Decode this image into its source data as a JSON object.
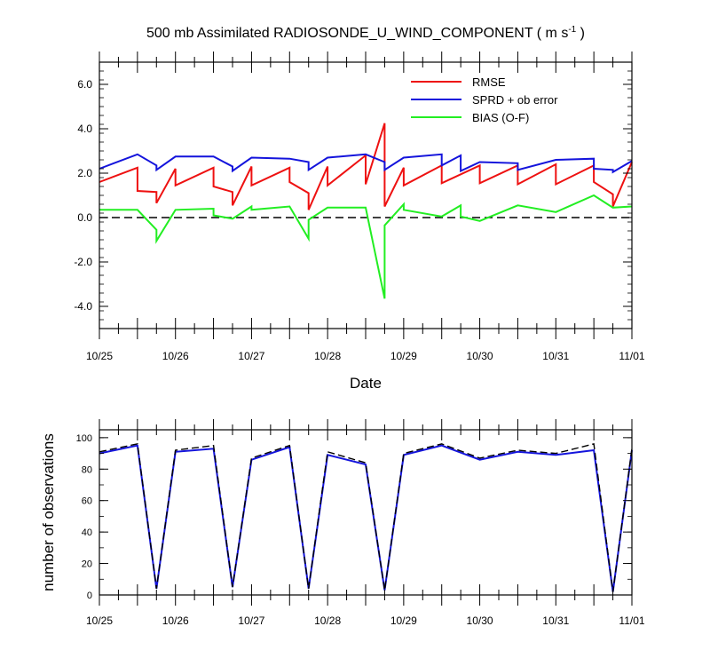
{
  "chart_data": [
    {
      "type": "line",
      "title": "500 mb Assimilated RADIOSONDE_U_WIND_COMPONENT ( m s",
      "title_units_exp": "-1",
      "title_suffix": " )",
      "xlabel": "Date",
      "ylabel": "",
      "x_tick_labels": [
        "10/25",
        "10/26",
        "10/27",
        "10/28",
        "10/29",
        "10/30",
        "10/31",
        "11/01"
      ],
      "y_tick_labels": [
        "-4.0",
        "-2.0",
        "0.0",
        "2.0",
        "4.0",
        "6.0"
      ],
      "ylim": [
        -5,
        7
      ],
      "zero_line": true,
      "legend_position": "top-right",
      "series": [
        {
          "name": "RMSE",
          "color": "#ee1111",
          "x": [
            0,
            0.5,
            0.5,
            0.75,
            0.75,
            1,
            1,
            1.5,
            1.5,
            1.75,
            1.75,
            2,
            2,
            2.5,
            2.5,
            2.75,
            2.75,
            3,
            3,
            3.5,
            3.5,
            3.75,
            3.75,
            4,
            4,
            4.5,
            4.5,
            5,
            5,
            5.5,
            5.5,
            6,
            6,
            6.5,
            6.5,
            6.75,
            6.75,
            7
          ],
          "y": [
            1.6,
            2.25,
            1.2,
            1.15,
            0.65,
            2.2,
            1.45,
            2.25,
            1.4,
            1.15,
            0.55,
            2.3,
            1.45,
            2.25,
            1.6,
            1.1,
            0.35,
            2.3,
            1.45,
            2.8,
            1.5,
            4.25,
            0.5,
            2.25,
            1.45,
            2.35,
            1.55,
            2.35,
            1.55,
            2.35,
            1.5,
            2.4,
            1.5,
            2.35,
            1.6,
            1.05,
            0.5,
            2.5
          ]
        },
        {
          "name": "SPRD + ob error",
          "color": "#1414dc",
          "x": [
            0,
            0.5,
            0.75,
            0.75,
            1,
            1.5,
            1.75,
            1.75,
            2,
            2.5,
            2.75,
            2.75,
            3,
            3.5,
            3.75,
            3.75,
            4,
            4.5,
            4.5,
            4.75,
            4.75,
            5,
            5.5,
            5.5,
            6,
            6.5,
            6.5,
            6.75,
            6.75,
            7
          ],
          "y": [
            2.2,
            2.85,
            2.35,
            2.15,
            2.75,
            2.75,
            2.3,
            2.1,
            2.7,
            2.65,
            2.5,
            2.15,
            2.7,
            2.85,
            2.5,
            2.15,
            2.7,
            2.85,
            2.35,
            2.8,
            2.1,
            2.5,
            2.45,
            2.15,
            2.6,
            2.65,
            2.2,
            2.15,
            2.05,
            2.55
          ]
        },
        {
          "name": "BIAS (O-F)",
          "color": "#22ee22",
          "x": [
            0,
            0.5,
            0.75,
            0.75,
            1,
            1.5,
            1.5,
            1.75,
            2,
            2,
            2.5,
            2.75,
            2.75,
            3,
            3.5,
            3.75,
            3.75,
            4,
            4,
            4.5,
            4.75,
            4.75,
            5,
            5.5,
            6,
            6.5,
            6.75,
            7
          ],
          "y": [
            0.35,
            0.35,
            -0.55,
            -1.05,
            0.35,
            0.4,
            0.1,
            -0.05,
            0.5,
            0.35,
            0.5,
            -0.95,
            -0.1,
            0.45,
            0.45,
            -3.65,
            -0.35,
            0.6,
            0.35,
            0.05,
            0.55,
            0.05,
            -0.15,
            0.55,
            0.25,
            1.0,
            0.45,
            0.5
          ]
        }
      ]
    },
    {
      "type": "line",
      "xlabel": "",
      "ylabel": "number of observations",
      "x_tick_labels": [
        "10/25",
        "10/26",
        "10/27",
        "10/28",
        "10/29",
        "10/30",
        "10/31",
        "11/01"
      ],
      "y_tick_labels": [
        "0",
        "20",
        "40",
        "60",
        "80",
        "100"
      ],
      "ylim": [
        0,
        105
      ],
      "series": [
        {
          "color": "#1414dc",
          "style": "solid",
          "x": [
            0,
            0.5,
            0.75,
            1,
            1.5,
            1.75,
            2,
            2.5,
            2.75,
            3,
            3.5,
            3.75,
            4,
            4.5,
            5,
            5.5,
            6,
            6.5,
            6.75,
            7
          ],
          "y": [
            90,
            95,
            4,
            91,
            93,
            5,
            86,
            94,
            4,
            89,
            83,
            3,
            89,
            95,
            86,
            91,
            89,
            92,
            2,
            92
          ]
        },
        {
          "color": "#000000",
          "style": "dashed",
          "x": [
            0,
            0.5,
            0.75,
            1,
            1.5,
            1.75,
            2,
            2.5,
            2.75,
            3,
            3.5,
            3.75,
            4,
            4.5,
            5,
            5.5,
            6,
            6.5,
            6.75,
            7
          ],
          "y": [
            91,
            96,
            4,
            92,
            95,
            5,
            87,
            95,
            4,
            91,
            84,
            3,
            90,
            96,
            87,
            92,
            90,
            96,
            2,
            93
          ]
        }
      ]
    }
  ]
}
